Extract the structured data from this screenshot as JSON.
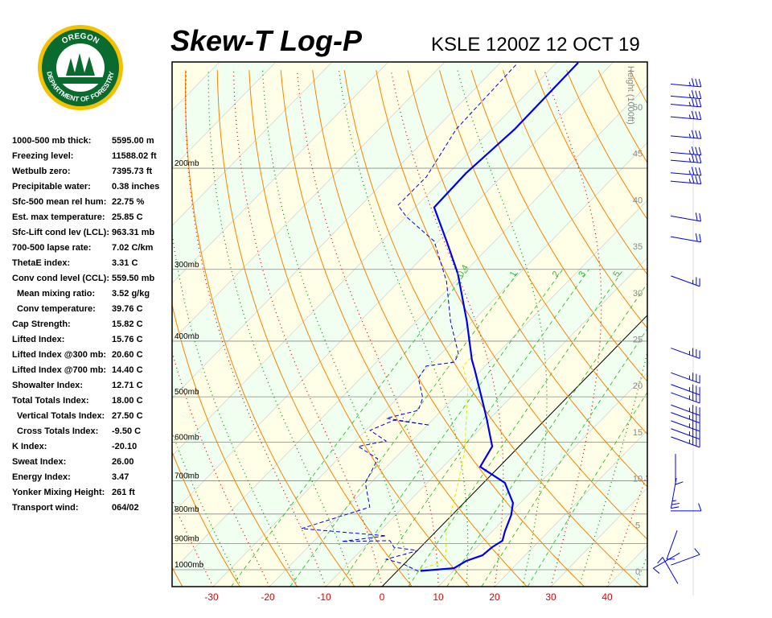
{
  "header": {
    "title": "Skew-T Log-P",
    "station_time": "KSLE 1200Z 12 OCT 19"
  },
  "logo": {
    "top_text": "OREGON",
    "bottom_text": "DEPARTMENT OF FORESTRY"
  },
  "stats": [
    {
      "label": "1000-500 mb thick:",
      "value": "5595.00 m"
    },
    {
      "label": "Freezing level:",
      "value": "11588.02 ft"
    },
    {
      "label": "Wetbulb zero:",
      "value": "7395.73 ft"
    },
    {
      "label": "Precipitable water:",
      "value": "0.38 inches"
    },
    {
      "label": "Sfc-500 mean rel hum:",
      "value": "22.75 %"
    },
    {
      "label": "Est. max temperature:",
      "value": "25.85 C"
    },
    {
      "label": "Sfc-Lift cond lev (LCL):",
      "value": "963.31 mb"
    },
    {
      "label": "700-500 lapse rate:",
      "value": "7.02 C/km"
    },
    {
      "label": "ThetaE index:",
      "value": "3.31 C"
    },
    {
      "label": "Conv cond level (CCL):",
      "value": "559.50 mb"
    },
    {
      "label": "Mean mixing ratio:",
      "value": "3.52 g/kg",
      "indent": true
    },
    {
      "label": "Conv temperature:",
      "value": "39.76 C",
      "indent": true
    },
    {
      "label": "Cap Strength:",
      "value": "15.82 C"
    },
    {
      "label": "Lifted Index:",
      "value": "15.76 C"
    },
    {
      "label": "Lifted Index @300 mb:",
      "value": "20.60 C"
    },
    {
      "label": "Lifted Index @700 mb:",
      "value": "14.40 C"
    },
    {
      "label": "Showalter Index:",
      "value": "12.71 C"
    },
    {
      "label": "Total Totals Index:",
      "value": "18.00 C"
    },
    {
      "label": "Vertical Totals Index:",
      "value": "27.50 C",
      "indent": true
    },
    {
      "label": "Cross Totals Index:",
      "value": "-9.50 C",
      "indent": true
    },
    {
      "label": "K Index:",
      "value": "-20.10"
    },
    {
      "label": "Sweat Index:",
      "value": "26.00"
    },
    {
      "label": "Energy Index:",
      "value": "3.47"
    },
    {
      "label": "Yonker Mixing Height:",
      "value": "261 ft"
    },
    {
      "label": "Transport wind:",
      "value": "064/02"
    }
  ],
  "chart_data": {
    "type": "line",
    "title": "Skew-T Log-P",
    "x_axis": {
      "label": "",
      "ticks": [
        -30,
        -20,
        -10,
        0,
        10,
        20,
        30,
        40
      ],
      "unit": "C"
    },
    "y_axis": {
      "scale": "log",
      "ticks": [
        {
          "p": 1000,
          "label": "1000mb"
        },
        {
          "p": 900,
          "label": "900mb"
        },
        {
          "p": 800,
          "label": "800mb"
        },
        {
          "p": 700,
          "label": "700mb"
        },
        {
          "p": 600,
          "label": "600mb"
        },
        {
          "p": 500,
          "label": "500mb"
        },
        {
          "p": 400,
          "label": "400mb"
        },
        {
          "p": 300,
          "label": "300mb"
        },
        {
          "p": 200,
          "label": "200mb"
        }
      ],
      "range_mb": [
        1070,
        131
      ]
    },
    "height_axis": {
      "label": "Height (1000ft)",
      "ticks": [
        0,
        5,
        10,
        15,
        20,
        25,
        30,
        35,
        40,
        45,
        50
      ]
    },
    "mixing_ratio_labels": [
      "0.4",
      "1",
      "2",
      "3",
      "5"
    ],
    "colors": {
      "temperature": "#0000ee",
      "dewpoint": "#0000ee",
      "wetbulb": "#e6e600",
      "dry_adiabat": "#ff8000",
      "mixing_ratio": "#33bb33",
      "moist_adiabat_a": "#e00000",
      "moist_adiabat_b": "#008800",
      "band_a": "#f0fff0",
      "band_b": "#ffffe8",
      "axis_temp": "#dd0000",
      "height": "#888888"
    },
    "temperature": [
      [
        1005,
        4.1
      ],
      [
        994,
        9.6
      ],
      [
        965,
        10.5
      ],
      [
        944,
        12.4
      ],
      [
        914,
        12.7
      ],
      [
        890,
        13.4
      ],
      [
        857,
        12.2
      ],
      [
        803,
        10.5
      ],
      [
        765,
        8.7
      ],
      [
        706,
        3.8
      ],
      [
        662,
        -3.4
      ],
      [
        610,
        -4.8
      ],
      [
        545,
        -10.7
      ],
      [
        495,
        -15.9
      ],
      [
        449,
        -21.2
      ],
      [
        431,
        -23.5
      ],
      [
        370,
        -31
      ],
      [
        305,
        -41
      ],
      [
        268,
        -48.6
      ],
      [
        234,
        -56.7
      ],
      [
        204,
        -57
      ],
      [
        171,
        -56
      ],
      [
        131,
        -56.3
      ]
    ],
    "dewpoint": [
      [
        1006,
        3.8
      ],
      [
        975,
        -0.5
      ],
      [
        959,
        -4.0
      ],
      [
        926,
        0.1
      ],
      [
        914,
        -4.7
      ],
      [
        890,
        -6.6
      ],
      [
        893,
        -15.0
      ],
      [
        873,
        -8.1
      ],
      [
        848,
        -24.4
      ],
      [
        778,
        -16
      ],
      [
        706,
        -21
      ],
      [
        662,
        -22.3
      ],
      [
        641,
        -23
      ],
      [
        610,
        -28.6
      ],
      [
        597,
        -24.6
      ],
      [
        572,
        -29.3
      ],
      [
        549,
        -26.8
      ],
      [
        560,
        -19.6
      ],
      [
        545,
        -28.5
      ],
      [
        528,
        -24.2
      ],
      [
        502,
        -25.6
      ],
      [
        464,
        -29.8
      ],
      [
        442,
        -30.5
      ],
      [
        435,
        -26.2
      ],
      [
        421,
        -26.9
      ],
      [
        370,
        -33.9
      ],
      [
        315,
        -41.6
      ],
      [
        268,
        -50.8
      ],
      [
        243,
        -60
      ],
      [
        232,
        -63.5
      ],
      [
        207,
        -63.4
      ],
      [
        171,
        -66.4
      ],
      [
        132,
        -67
      ]
    ],
    "wetbulb": [
      [
        1006,
        3.0
      ],
      [
        975,
        5.9
      ],
      [
        944,
        5.9
      ],
      [
        857,
        1.8
      ],
      [
        803,
        -0.3
      ],
      [
        706,
        -4.5
      ],
      [
        620,
        -9
      ],
      [
        545,
        -14.3
      ],
      [
        479,
        -19.6
      ],
      [
        442,
        -24
      ],
      [
        421,
        -24
      ]
    ],
    "winds": [
      [
        143,
        95,
        25
      ],
      [
        150,
        95,
        25
      ],
      [
        155,
        95,
        25
      ],
      [
        163,
        95,
        25
      ],
      [
        176,
        95,
        25
      ],
      [
        188,
        95,
        25
      ],
      [
        194,
        95,
        25
      ],
      [
        204,
        95,
        25
      ],
      [
        211,
        95,
        25
      ],
      [
        243,
        100,
        20
      ],
      [
        264,
        100,
        20
      ],
      [
        310,
        110,
        15
      ],
      [
        414,
        110,
        25
      ],
      [
        457,
        110,
        25
      ],
      [
        479,
        110,
        25
      ],
      [
        495,
        110,
        25
      ],
      [
        520,
        110,
        25
      ],
      [
        536,
        110,
        25
      ],
      [
        554,
        110,
        25
      ],
      [
        572,
        110,
        25
      ],
      [
        591,
        110,
        25
      ],
      [
        641,
        180,
        10
      ],
      [
        706,
        190,
        15
      ],
      [
        790,
        90,
        10
      ],
      [
        870,
        200,
        10
      ],
      [
        944,
        240,
        10
      ],
      [
        975,
        70,
        10
      ],
      [
        1040,
        330,
        10
      ]
    ]
  }
}
